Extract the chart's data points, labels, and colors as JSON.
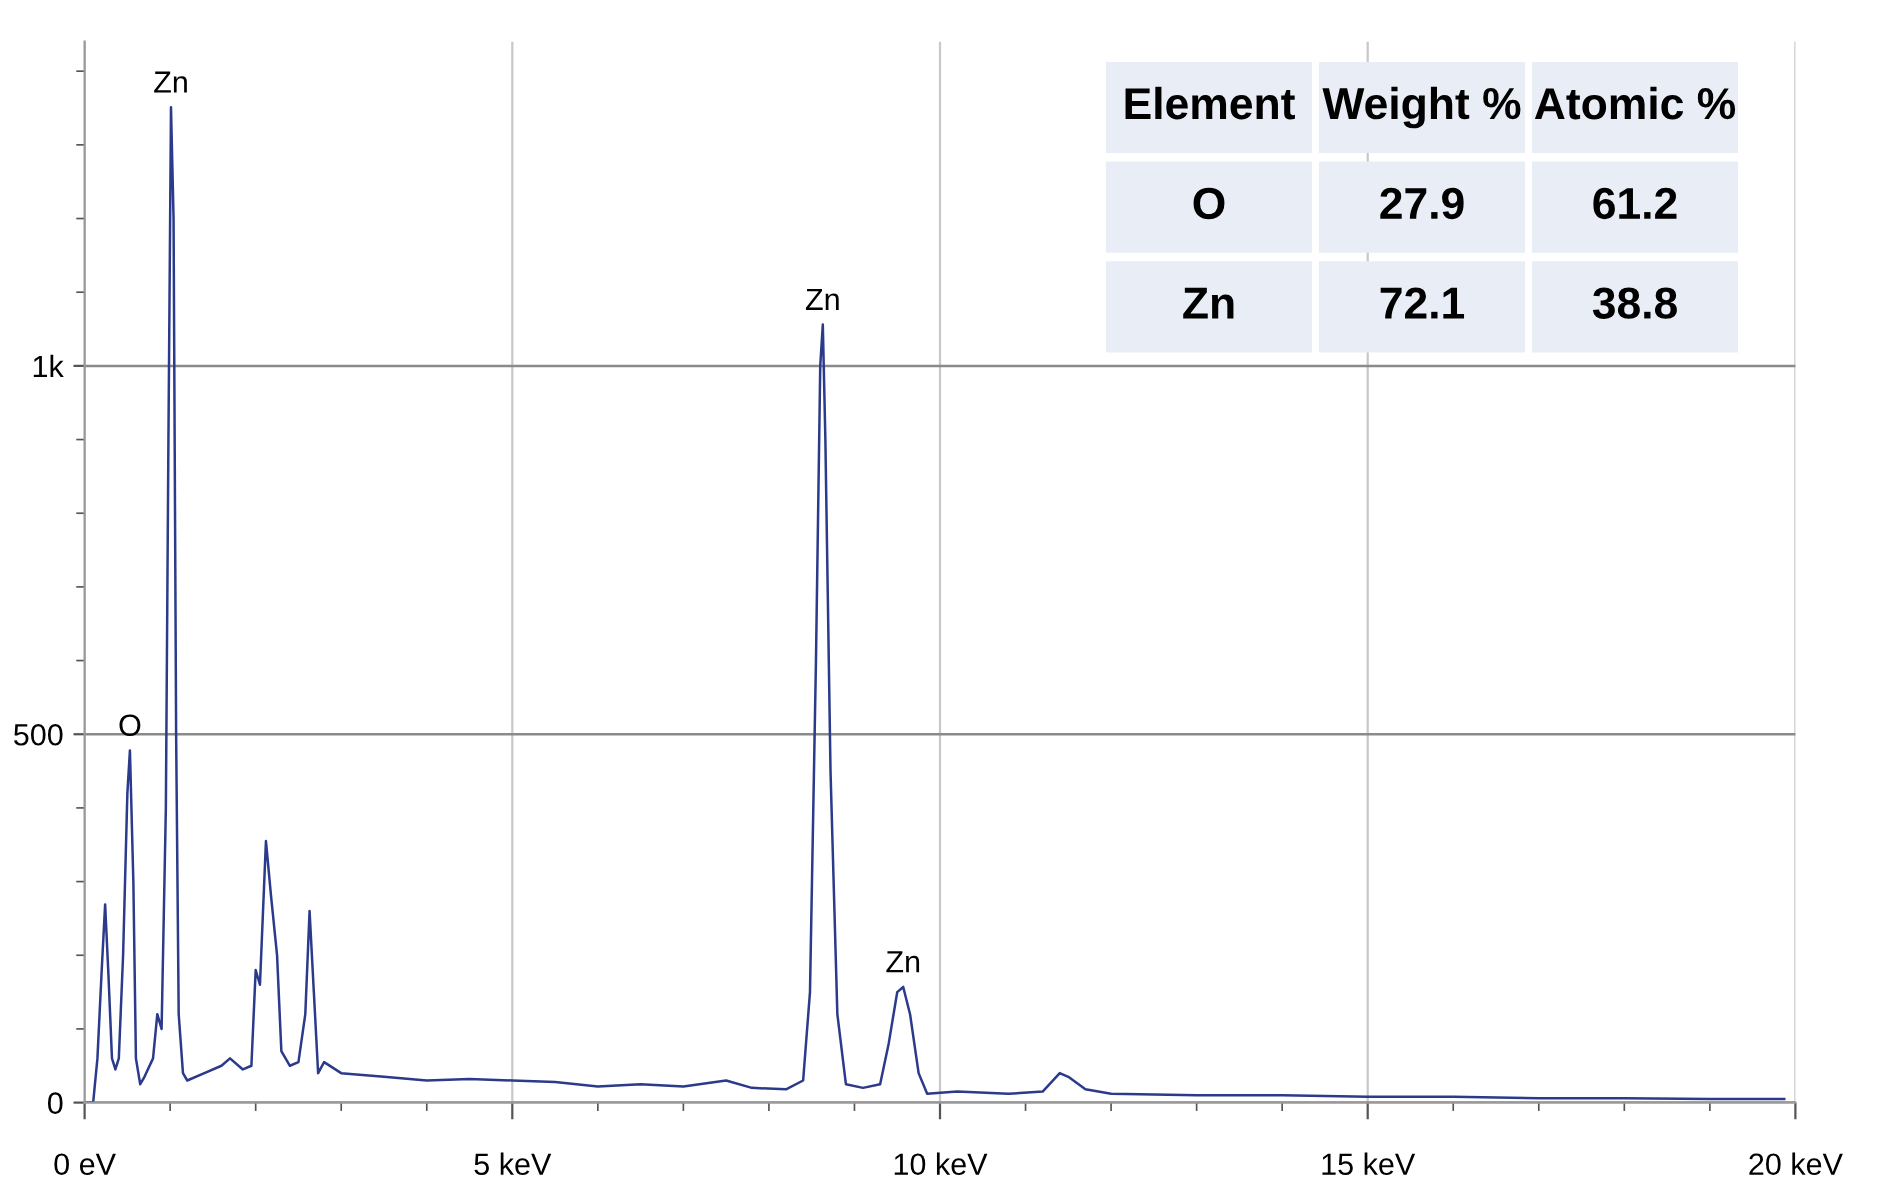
{
  "chart_data": {
    "type": "line",
    "x": [
      0,
      0.1,
      0.15,
      0.2,
      0.24,
      0.28,
      0.32,
      0.36,
      0.4,
      0.45,
      0.5,
      0.53,
      0.57,
      0.6,
      0.65,
      0.7,
      0.8,
      0.85,
      0.9,
      0.95,
      0.98,
      1.01,
      1.04,
      1.07,
      1.1,
      1.15,
      1.2,
      1.4,
      1.6,
      1.7,
      1.85,
      1.95,
      2.0,
      2.05,
      2.12,
      2.18,
      2.25,
      2.3,
      2.4,
      2.5,
      2.58,
      2.63,
      2.68,
      2.73,
      2.8,
      3.0,
      3.5,
      4.0,
      4.5,
      5.0,
      5.5,
      6.0,
      6.5,
      7.0,
      7.5,
      7.8,
      8.2,
      8.4,
      8.48,
      8.55,
      8.6,
      8.63,
      8.66,
      8.72,
      8.8,
      8.9,
      9.1,
      9.3,
      9.4,
      9.5,
      9.57,
      9.65,
      9.75,
      9.85,
      10.2,
      10.8,
      11.2,
      11.4,
      11.5,
      11.7,
      12,
      13,
      14,
      15,
      16,
      17,
      18,
      19,
      19.87
    ],
    "series": [
      {
        "color": "#2b3a8a",
        "values": [
          0,
          0,
          60,
          180,
          269,
          170,
          60,
          45,
          60,
          200,
          420,
          478,
          300,
          60,
          25,
          35,
          60,
          120,
          100,
          400,
          900,
          1351,
          1200,
          500,
          120,
          40,
          30,
          40,
          50,
          60,
          45,
          50,
          180,
          160,
          355,
          280,
          200,
          70,
          50,
          55,
          120,
          260,
          150,
          40,
          55,
          40,
          35,
          30,
          32,
          30,
          28,
          22,
          25,
          22,
          30,
          20,
          18,
          30,
          150,
          600,
          1000,
          1056,
          900,
          450,
          120,
          25,
          20,
          25,
          80,
          150,
          157,
          120,
          40,
          12,
          15,
          12,
          15,
          40,
          35,
          18,
          12,
          10,
          10,
          8,
          8,
          6,
          6,
          5,
          5
        ]
      }
    ],
    "xlim": [
      0,
      20
    ],
    "xticks": [
      {
        "value": 0,
        "label": "0 eV"
      },
      {
        "value": 1,
        "label": null
      },
      {
        "value": 2,
        "label": null
      },
      {
        "value": 3,
        "label": null
      },
      {
        "value": 4,
        "label": null
      },
      {
        "value": 5,
        "label": "5 keV"
      },
      {
        "value": 6,
        "label": null
      },
      {
        "value": 7,
        "label": null
      },
      {
        "value": 8,
        "label": null
      },
      {
        "value": 9,
        "label": null
      },
      {
        "value": 10,
        "label": "10 keV"
      },
      {
        "value": 11,
        "label": null
      },
      {
        "value": 12,
        "label": null
      },
      {
        "value": 13,
        "label": null
      },
      {
        "value": 14,
        "label": null
      },
      {
        "value": 15,
        "label": "15 keV"
      },
      {
        "value": 16,
        "label": null
      },
      {
        "value": 17,
        "label": null
      },
      {
        "value": 18,
        "label": null
      },
      {
        "value": 19,
        "label": null
      },
      {
        "value": 20,
        "label": "20 keV"
      }
    ],
    "ylim": [
      0,
      1440
    ],
    "yticks": [
      0,
      {
        "value": 100,
        "label": null
      },
      {
        "value": 200,
        "label": null
      },
      {
        "value": 300,
        "label": null
      },
      {
        "value": 400,
        "label": null
      },
      500,
      {
        "value": 600,
        "label": null
      },
      {
        "value": 700,
        "label": null
      },
      {
        "value": 800,
        "label": null
      },
      {
        "value": 900,
        "label": null
      },
      {
        "value": 1000,
        "label": "1k"
      },
      {
        "value": 1100,
        "label": null
      },
      {
        "value": 1200,
        "label": null
      },
      {
        "value": 1300,
        "label": null
      },
      {
        "value": 1400,
        "label": null
      }
    ],
    "grid": true,
    "marker": "none",
    "line_style": "solid",
    "annotations": [
      {
        "text": "Zn",
        "x": 1.01,
        "y": 1351
      },
      {
        "text": "O",
        "x": 0.53,
        "y": 478
      },
      {
        "text": "Zn",
        "x": 8.63,
        "y": 1056
      },
      {
        "text": "Zn",
        "x": 9.57,
        "y": 157
      },
      "Element",
      "Weight %",
      "Atomic %",
      "O",
      "27.9",
      "61.2",
      "Zn",
      "72.1",
      "38.8"
    ]
  }
}
